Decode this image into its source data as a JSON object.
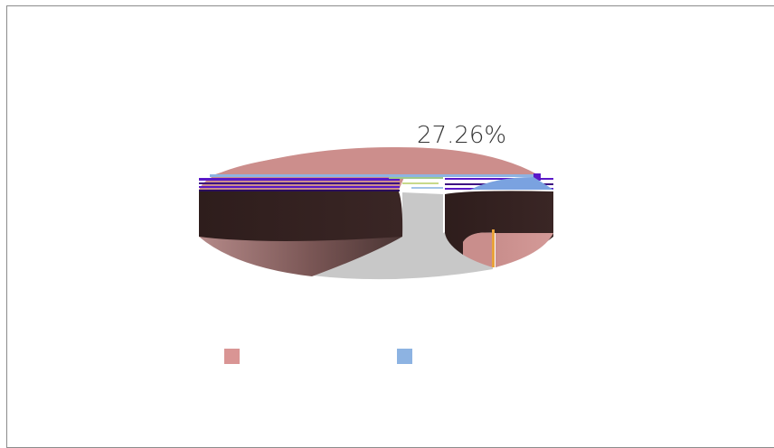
{
  "chart_data": {
    "type": "pie",
    "style": "3d-exploded",
    "data_labels": [
      "27.26%"
    ],
    "series": [
      {
        "color": "#d99594",
        "legend_label": ""
      },
      {
        "color": "#8db3e2",
        "legend_label": ""
      }
    ],
    "legend_placement": "bottom",
    "slice_colors": {
      "top_pink": "#cc8e8c",
      "dark_wall": "#32201f",
      "gray_center": "#c8c8c8",
      "violet_band": "#5a18c8",
      "blue_band": "#7aa2e0"
    }
  }
}
